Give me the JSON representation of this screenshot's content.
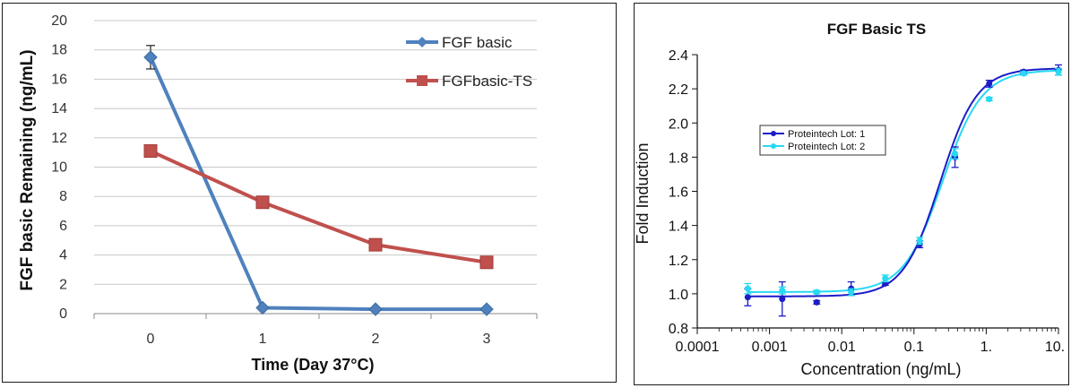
{
  "charts": [
    {
      "type": "line",
      "title": "",
      "xlabel": "Time (Day  37°C)",
      "ylabel": "FGF basic Remaining (ng/mL)",
      "x": [
        0,
        1,
        2,
        3
      ],
      "x_ticks": [
        "0",
        "1",
        "2",
        "3"
      ],
      "ylim": [
        0,
        20
      ],
      "y_ticks": [
        "0",
        "2",
        "4",
        "6",
        "8",
        "10",
        "12",
        "14",
        "16",
        "18",
        "20"
      ],
      "grid": true,
      "legend_position": "top-right",
      "series": [
        {
          "name": "FGF basic",
          "color": "#4f81bd",
          "marker": "diamond",
          "values": [
            17.5,
            0.4,
            0.3,
            0.3
          ],
          "errors": [
            0.8,
            0,
            0,
            0
          ]
        },
        {
          "name": "FGFbasic-TS",
          "color": "#c0504d",
          "marker": "square",
          "values": [
            11.1,
            7.6,
            4.7,
            3.5
          ],
          "errors": [
            0,
            0,
            0,
            0
          ]
        }
      ]
    },
    {
      "type": "scatter",
      "title": "FGF Basic TS",
      "xlabel": "Concentration (ng/mL)",
      "ylabel": "Fold Induction",
      "x_scale": "log",
      "xlim": [
        0.0001,
        10
      ],
      "x_ticks": [
        "0.0001",
        "0.001",
        "0.01",
        "0.1",
        "1.",
        "10."
      ],
      "ylim": [
        0.8,
        2.4
      ],
      "y_ticks": [
        "0.8",
        "1.0",
        "1.2",
        "1.4",
        "1.6",
        "1.8",
        "2.0",
        "2.2",
        "2.4"
      ],
      "grid": false,
      "legend_position": "center-left",
      "series": [
        {
          "name": "Proteintech Lot: 1",
          "color": "#1c1cc8",
          "x": [
            0.0005,
            0.0015,
            0.0045,
            0.0135,
            0.04,
            0.12,
            0.37,
            1.1,
            3.3,
            10
          ],
          "values": [
            0.98,
            0.97,
            0.95,
            1.03,
            1.06,
            1.29,
            1.8,
            2.23,
            2.3,
            2.31
          ],
          "errors": [
            0.05,
            0.1,
            0.01,
            0.04,
            0.01,
            0.02,
            0.06,
            0.02,
            0.01,
            0.03
          ],
          "fit": {
            "bottom": 0.985,
            "top": 2.32,
            "ec50": 0.23,
            "hill": 1.7
          }
        },
        {
          "name": "Proteintech Lot: 2",
          "color": "#27d9f2",
          "x": [
            0.0005,
            0.0015,
            0.0045,
            0.0135,
            0.04,
            0.12,
            0.37,
            1.1,
            3.3,
            10
          ],
          "values": [
            1.03,
            1.02,
            1.01,
            1.01,
            1.09,
            1.31,
            1.82,
            2.14,
            2.29,
            2.3
          ],
          "errors": [
            0.03,
            0.02,
            0.01,
            0.02,
            0.02,
            0.02,
            0.03,
            0.01,
            0.01,
            0.02
          ],
          "fit": {
            "bottom": 1.01,
            "top": 2.31,
            "ec50": 0.25,
            "hill": 1.6
          }
        }
      ]
    }
  ]
}
